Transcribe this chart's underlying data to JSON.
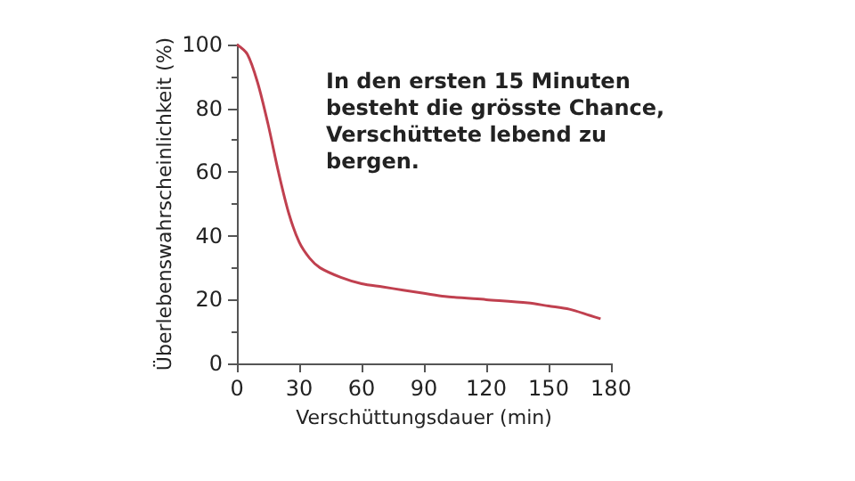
{
  "chart_data": {
    "type": "line",
    "xlabel": "Verschüttungsdauer (min)",
    "ylabel": "Überlebenswahrscheinlichkeit (%)",
    "annotations": [
      "In den ersten 15 Minuten\nbesteht die grösste Chance,\nVerschüttete lebend zu\nbergen."
    ],
    "x": [
      0,
      5,
      10,
      15,
      20,
      25,
      30,
      35,
      40,
      50,
      60,
      70,
      80,
      90,
      100,
      120,
      140,
      150,
      160,
      170,
      175
    ],
    "series": [
      {
        "color": "#c0404f",
        "values": [
          100,
          97,
          88,
          75,
          60,
          47,
          38,
          33,
          30,
          27,
          25,
          24,
          23,
          22,
          21,
          20,
          19,
          18,
          17,
          15,
          14
        ]
      }
    ],
    "xlim": [
      0,
      180
    ],
    "xticks": [
      0,
      30,
      60,
      90,
      120,
      150,
      180
    ],
    "ylim": [
      0,
      100
    ],
    "yticks": [
      0,
      20,
      40,
      60,
      80,
      100
    ],
    "grid": false,
    "marker": "none",
    "line_style": "solid"
  }
}
